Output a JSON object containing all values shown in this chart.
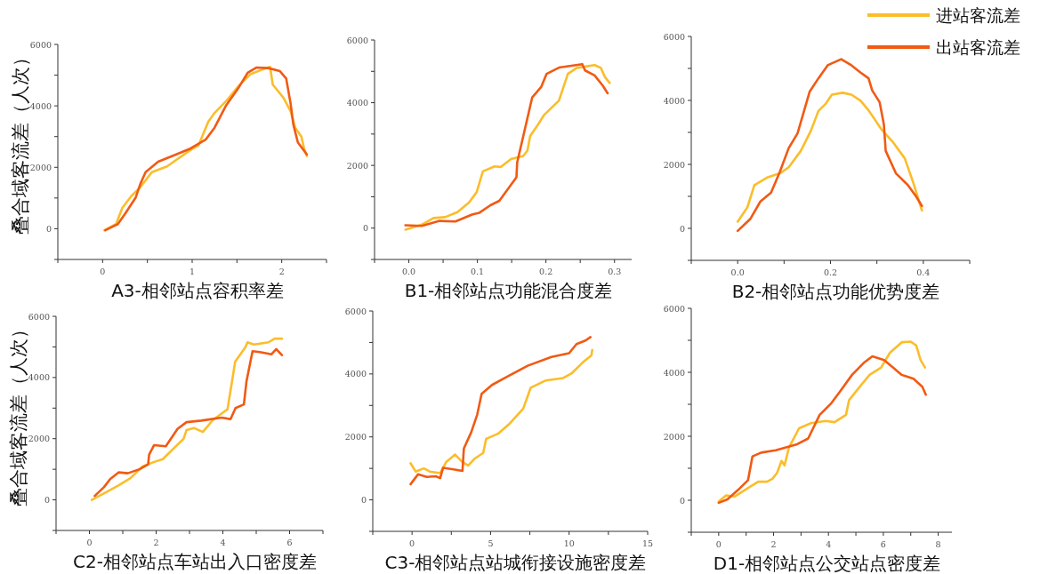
{
  "chart_data": [
    {
      "type": "line",
      "xlabel": "A3-相邻站点容积率差",
      "ylabel": "叠合域客流差（人次）",
      "xlim": [
        -0.5,
        2.5
      ],
      "xticks": [
        {
          "value": -0.5,
          "label": null
        },
        0,
        {
          "value": 0.5,
          "label": null
        },
        1,
        {
          "value": 1.5,
          "label": null
        },
        2,
        {
          "value": 2.5,
          "label": null
        }
      ],
      "ylim": [
        -1000,
        6000
      ],
      "yticks": [
        {
          "value": -1000,
          "label": null
        },
        0,
        {
          "value": 1000,
          "label": null
        },
        2000,
        {
          "value": 3000,
          "label": null
        },
        4000,
        {
          "value": 5000,
          "label": null
        },
        6000
      ],
      "series": [
        {
          "color": "#fbbd2a",
          "x": [
            0.02,
            0.15,
            0.22,
            0.32,
            0.42,
            0.55,
            0.72,
            0.98,
            1.07,
            1.18,
            1.25,
            1.38,
            1.52,
            1.65,
            1.78,
            1.87,
            1.9,
            2.02,
            2.1,
            2.15,
            2.22,
            2.25,
            2.28
          ],
          "values": [
            -50,
            150,
            680,
            1060,
            1350,
            1840,
            2030,
            2560,
            2710,
            3480,
            3770,
            4160,
            4650,
            5030,
            5180,
            5270,
            4690,
            4260,
            3820,
            3290,
            3000,
            2610,
            2370
          ]
        },
        {
          "color": "#f15a13",
          "x": [
            0.03,
            0.17,
            0.25,
            0.37,
            0.42,
            0.48,
            0.62,
            0.78,
            0.98,
            1.15,
            1.25,
            1.38,
            1.52,
            1.62,
            1.72,
            1.85,
            1.98,
            2.05,
            2.1,
            2.13,
            2.18,
            2.28
          ],
          "values": [
            -50,
            150,
            480,
            1020,
            1450,
            1840,
            2180,
            2370,
            2610,
            2900,
            3290,
            4020,
            4600,
            5080,
            5250,
            5230,
            5130,
            4890,
            4060,
            3390,
            2810,
            2420
          ]
        }
      ]
    },
    {
      "type": "line",
      "xlabel": "B1-相邻站点功能混合度差",
      "xlim": [
        -0.05,
        0.325
      ],
      "xticks": [
        {
          "value": -0.05,
          "label": null
        },
        {
          "value": 0,
          "label": "0.0"
        },
        {
          "value": 0.05,
          "label": null
        },
        0.1,
        {
          "value": 0.15,
          "label": null
        },
        0.2,
        {
          "value": 0.25,
          "label": null
        },
        0.3
      ],
      "ylim": [
        -1000,
        6000
      ],
      "yticks": [
        {
          "value": -1000,
          "label": null
        },
        0,
        {
          "value": 1000,
          "label": null
        },
        2000,
        {
          "value": 3000,
          "label": null
        },
        4000,
        {
          "value": 5000,
          "label": null
        },
        6000
      ],
      "series": [
        {
          "color": "#fbbd2a",
          "x": [
            -0.005,
            0.019,
            0.036,
            0.053,
            0.071,
            0.088,
            0.099,
            0.108,
            0.125,
            0.134,
            0.149,
            0.167,
            0.173,
            0.177,
            0.186,
            0.197,
            0.219,
            0.232,
            0.245,
            0.271,
            0.28,
            0.286,
            0.293
          ],
          "values": [
            -50,
            110,
            320,
            350,
            510,
            820,
            1150,
            1810,
            1970,
            1950,
            2200,
            2300,
            2470,
            2940,
            3220,
            3600,
            4070,
            4920,
            5110,
            5200,
            5110,
            4820,
            4630
          ]
        },
        {
          "color": "#f15a13",
          "x": [
            -0.005,
            0.019,
            0.045,
            0.068,
            0.093,
            0.103,
            0.119,
            0.132,
            0.149,
            0.157,
            0.158,
            0.167,
            0.18,
            0.193,
            0.201,
            0.219,
            0.253,
            0.257,
            0.271,
            0.283,
            0.29
          ],
          "values": [
            90,
            70,
            230,
            210,
            440,
            490,
            730,
            870,
            1380,
            1620,
            2090,
            2940,
            4170,
            4500,
            4920,
            5120,
            5230,
            5030,
            4870,
            4540,
            4300
          ]
        }
      ]
    },
    {
      "type": "line",
      "xlabel": "B2-相邻站点功能优势度差",
      "legend": "top right",
      "xlim": [
        -0.1,
        0.5
      ],
      "xticks": [
        {
          "value": -0.1,
          "label": null
        },
        {
          "value": 0,
          "label": "0.0"
        },
        {
          "value": 0.1,
          "label": null
        },
        0.2,
        {
          "value": 0.3,
          "label": null
        },
        0.4,
        {
          "value": 0.5,
          "label": null
        }
      ],
      "ylim": [
        -1000,
        6000
      ],
      "yticks": [
        {
          "value": -1000,
          "label": null
        },
        0,
        {
          "value": 1000,
          "label": null
        },
        2000,
        {
          "value": 3000,
          "label": null
        },
        4000,
        {
          "value": 5000,
          "label": null
        },
        6000
      ],
      "series": [
        {
          "name": "进站客流差",
          "color": "#fbbd2a",
          "x": [
            0,
            0.021,
            0.036,
            0.065,
            0.091,
            0.11,
            0.136,
            0.158,
            0.174,
            0.19,
            0.203,
            0.226,
            0.245,
            0.265,
            0.283,
            0.309,
            0.335,
            0.36,
            0.379,
            0.397
          ],
          "values": [
            210,
            660,
            1350,
            1600,
            1720,
            1910,
            2420,
            3060,
            3670,
            3900,
            4180,
            4240,
            4180,
            3990,
            3670,
            3110,
            2690,
            2190,
            1400,
            560
          ]
        },
        {
          "name": "出站客流差",
          "color": "#f15a13",
          "x": [
            0,
            0.027,
            0.049,
            0.072,
            0.091,
            0.11,
            0.129,
            0.155,
            0.174,
            0.194,
            0.223,
            0.245,
            0.265,
            0.282,
            0.29,
            0.306,
            0.315,
            0.319,
            0.341,
            0.367,
            0.383,
            0.397
          ],
          "values": [
            -80,
            290,
            840,
            1120,
            1770,
            2510,
            2970,
            4270,
            4690,
            5100,
            5290,
            5100,
            4870,
            4690,
            4310,
            3940,
            3250,
            2420,
            1720,
            1350,
            1030,
            700
          ]
        }
      ]
    },
    {
      "type": "line",
      "xlabel": "C2-相邻站点车站出入口密度差",
      "ylabel": "叠合域客流差（人次）",
      "xlim": [
        -1,
        7
      ],
      "xticks": [
        {
          "value": -1,
          "label": null
        },
        0,
        {
          "value": 1,
          "label": null
        },
        2,
        {
          "value": 3,
          "label": null
        },
        4,
        {
          "value": 5,
          "label": null
        },
        6,
        {
          "value": 7,
          "label": null
        }
      ],
      "ylim": [
        -1000,
        6000
      ],
      "yticks": [
        {
          "value": -1000,
          "label": null
        },
        0,
        {
          "value": 1000,
          "label": null
        },
        2000,
        {
          "value": 3000,
          "label": null
        },
        4000,
        {
          "value": 5000,
          "label": null
        },
        6000
      ],
      "series": [
        {
          "color": "#fbbd2a",
          "x": [
            0.07,
            0.53,
            0.88,
            1.23,
            1.59,
            1.94,
            2.2,
            2.56,
            2.82,
            2.91,
            3.13,
            3.4,
            3.7,
            4.14,
            4.37,
            4.67,
            4.74,
            4.93,
            5.37,
            5.55,
            5.77
          ],
          "values": [
            0,
            270,
            480,
            710,
            1090,
            1240,
            1330,
            1720,
            1990,
            2280,
            2350,
            2220,
            2610,
            2960,
            4520,
            4980,
            5150,
            5080,
            5150,
            5270,
            5270
          ]
        },
        {
          "color": "#f15a13",
          "x": [
            0.16,
            0.44,
            0.62,
            0.88,
            1.15,
            1.5,
            1.76,
            1.79,
            1.94,
            2.29,
            2.64,
            2.91,
            3.35,
            3.96,
            4.23,
            4.38,
            4.63,
            4.71,
            4.89,
            5.11,
            5.46,
            5.6,
            5.77
          ],
          "values": [
            130,
            420,
            680,
            900,
            870,
            1000,
            1160,
            1480,
            1790,
            1750,
            2320,
            2540,
            2590,
            2690,
            2640,
            3000,
            3120,
            3890,
            4860,
            4830,
            4760,
            4930,
            4730
          ]
        }
      ]
    },
    {
      "type": "line",
      "xlabel": "C3-相邻站点站城衔接设施密度差",
      "xlim": [
        -2.5,
        15
      ],
      "xticks": [
        {
          "value": -2.5,
          "label": null
        },
        0,
        {
          "value": 2.5,
          "label": null
        },
        5,
        {
          "value": 7.5,
          "label": null
        },
        10,
        {
          "value": 12.5,
          "label": null
        },
        15
      ],
      "ylim": [
        -1000,
        6000
      ],
      "yticks": [
        {
          "value": -1000,
          "label": null
        },
        0,
        {
          "value": 1000,
          "label": null
        },
        2000,
        {
          "value": 3000,
          "label": null
        },
        4000,
        {
          "value": 5000,
          "label": null
        },
        6000
      ],
      "series": [
        {
          "color": "#fbbd2a",
          "x": [
            -0.09,
            0.23,
            0.75,
            1.13,
            1.79,
            2.17,
            2.74,
            3.21,
            3.58,
            3.96,
            4.53,
            4.72,
            5.47,
            6.23,
            7.08,
            7.55,
            8.49,
            9.62,
            10.19,
            10.94,
            11.42,
            11.47
          ],
          "values": [
            1160,
            900,
            1000,
            900,
            850,
            1200,
            1440,
            1200,
            1090,
            1300,
            1490,
            1940,
            2100,
            2430,
            2900,
            3560,
            3790,
            3870,
            4030,
            4400,
            4590,
            4760
          ]
        },
        {
          "color": "#f15a13",
          "x": [
            -0.09,
            0.38,
            0.94,
            1.51,
            1.79,
            1.98,
            2.64,
            3.21,
            3.3,
            3.77,
            4.15,
            4.43,
            5.09,
            5.85,
            7.36,
            8.87,
            10,
            10.47,
            11.04,
            11.36
          ],
          "values": [
            500,
            810,
            730,
            750,
            690,
            1020,
            970,
            920,
            1630,
            2150,
            2710,
            3370,
            3650,
            3860,
            4260,
            4540,
            4660,
            4950,
            5060,
            5170
          ]
        }
      ]
    },
    {
      "type": "line",
      "xlabel": "D1-相邻站点公交站点密度差",
      "xlim": [
        -1,
        8.5
      ],
      "xticks": [
        {
          "value": -1,
          "label": null
        },
        0,
        {
          "value": 1,
          "label": null
        },
        2,
        {
          "value": 3,
          "label": null
        },
        4,
        {
          "value": 5,
          "label": null
        },
        6,
        {
          "value": 7,
          "label": null
        },
        8
      ],
      "ylim": [
        -1000,
        6000
      ],
      "yticks": [
        {
          "value": -1000,
          "label": null
        },
        0,
        {
          "value": 1000,
          "label": null
        },
        2000,
        {
          "value": 3000,
          "label": null
        },
        4000,
        {
          "value": 5000,
          "label": null
        },
        6000
      ],
      "series": [
        {
          "color": "#fbbd2a",
          "x": [
            0,
            0.27,
            0.59,
            1.01,
            1.44,
            1.76,
            1.97,
            2.13,
            2.29,
            2.4,
            2.56,
            2.93,
            3.36,
            3.9,
            4.22,
            4.64,
            4.75,
            5.18,
            5.5,
            5.92,
            6.24,
            6.67,
            6.99,
            7.2,
            7.36,
            7.52
          ],
          "values": [
            -40,
            150,
            120,
            350,
            580,
            580,
            680,
            860,
            1230,
            1090,
            1650,
            2250,
            2410,
            2480,
            2440,
            2670,
            3130,
            3590,
            3920,
            4150,
            4610,
            4940,
            4960,
            4840,
            4380,
            4150
          ]
        },
        {
          "color": "#f15a13",
          "x": [
            0,
            0.32,
            0.69,
            1.07,
            1.23,
            1.55,
            2.08,
            2.83,
            3.26,
            3.68,
            4.11,
            4.43,
            4.86,
            5.28,
            5.6,
            6.03,
            6.35,
            6.67,
            7.1,
            7.42,
            7.55
          ],
          "values": [
            -80,
            30,
            310,
            630,
            1370,
            1490,
            1560,
            1740,
            1930,
            2670,
            3040,
            3410,
            3920,
            4290,
            4500,
            4380,
            4150,
            3920,
            3800,
            3550,
            3300
          ]
        }
      ]
    }
  ]
}
